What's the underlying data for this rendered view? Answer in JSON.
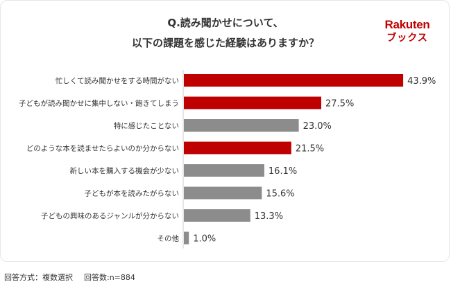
{
  "header": {
    "title_line1": "Q.読み聞かせについて、",
    "title_line2": "以下の課題を感じた経験はありますか？",
    "logo_line1": "Rakuten",
    "logo_line2": "ブックス"
  },
  "footer": {
    "method": "回答方式：複数選択",
    "respondents": "回答数:n=884"
  },
  "colors": {
    "highlight": "#bf0000",
    "normal": "#8c8c8c",
    "axis": "#cccccc",
    "text": "#333333"
  },
  "chart_data": {
    "type": "bar",
    "orientation": "horizontal",
    "categories": [
      "忙しくて読み聞かせをする時間がない",
      "子どもが読み聞かせに集中しない・飽きてしまう",
      "特に感じたことない",
      "どのような本を読ませたらよいのか分からない",
      "新しい本を購入する機会が少ない",
      "子どもが本を読みたがらない",
      "子どもの興味のあるジャンルが分からない",
      "その他"
    ],
    "values": [
      43.9,
      27.5,
      23.0,
      21.5,
      16.1,
      15.6,
      13.3,
      1.0
    ],
    "value_labels": [
      "43.9%",
      "27.5%",
      "23.0%",
      "21.5%",
      "16.1%",
      "15.6%",
      "13.3%",
      "1.0%"
    ],
    "highlighted": [
      true,
      true,
      false,
      true,
      false,
      false,
      false,
      false
    ],
    "xlim": [
      0,
      50
    ]
  }
}
